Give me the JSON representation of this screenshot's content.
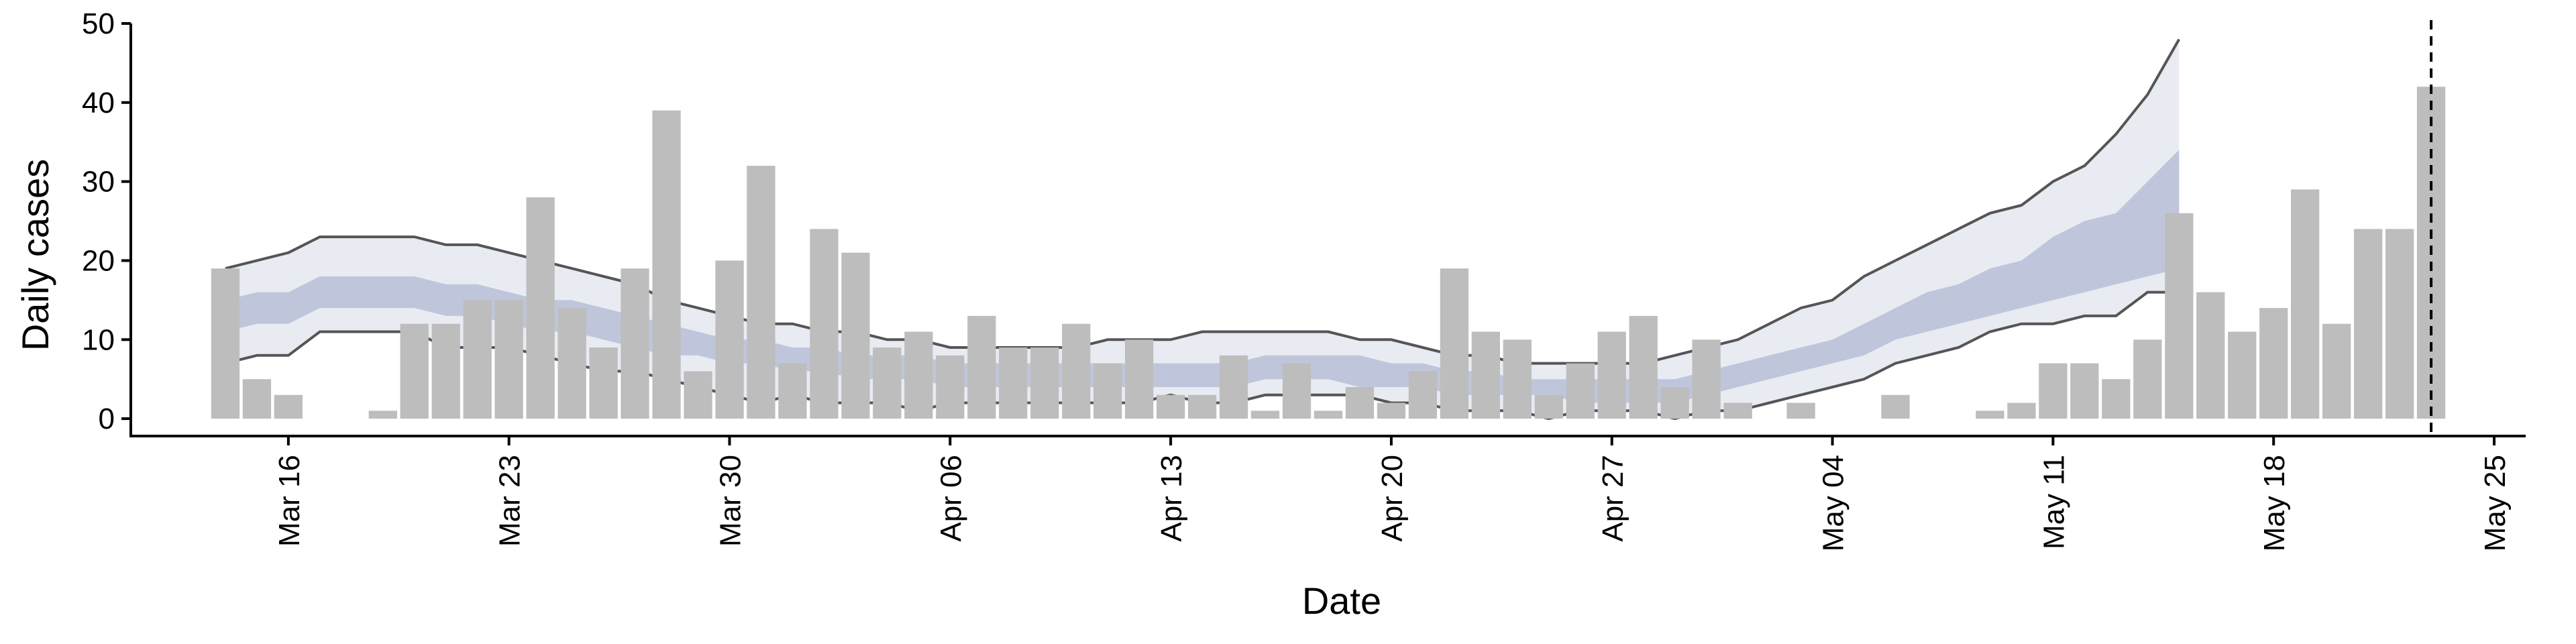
{
  "chart_data": {
    "type": "bar",
    "xlabel": "Date",
    "ylabel": "Daily cases",
    "ylim": [
      0,
      50
    ],
    "yticks": [
      0,
      10,
      20,
      30,
      40,
      50
    ],
    "xlim": [
      "2020-03-11",
      "2020-05-26"
    ],
    "xticks": [
      {
        "date": "2020-03-16",
        "label": "Mar 16"
      },
      {
        "date": "2020-03-23",
        "label": "Mar 23"
      },
      {
        "date": "2020-03-30",
        "label": "Mar 30"
      },
      {
        "date": "2020-04-06",
        "label": "Apr 06"
      },
      {
        "date": "2020-04-13",
        "label": "Apr 13"
      },
      {
        "date": "2020-04-20",
        "label": "Apr 20"
      },
      {
        "date": "2020-04-27",
        "label": "Apr 27"
      },
      {
        "date": "2020-05-04",
        "label": "May 04"
      },
      {
        "date": "2020-05-11",
        "label": "May 11"
      },
      {
        "date": "2020-05-18",
        "label": "May 18"
      },
      {
        "date": "2020-05-25",
        "label": "May 25"
      }
    ],
    "bar_color": "#bdbdbd",
    "bars_start_date": "2020-03-14",
    "bar_values": [
      19,
      5,
      3,
      0,
      0,
      1,
      12,
      12,
      15,
      15,
      28,
      14,
      9,
      19,
      39,
      6,
      20,
      32,
      7,
      24,
      21,
      9,
      11,
      8,
      13,
      9,
      9,
      12,
      7,
      10,
      3,
      3,
      8,
      1,
      7,
      1,
      4,
      2,
      6,
      19,
      11,
      10,
      3,
      7,
      11,
      13,
      4,
      10,
      2,
      0,
      2,
      0,
      0,
      3,
      0,
      0,
      1,
      2,
      7,
      7,
      5,
      10,
      26,
      16,
      11,
      14,
      29,
      12,
      24,
      24,
      42
    ],
    "band_start_date": "2020-03-14",
    "band_outer_color": "#e9ebf3",
    "band_inner_color": "#b7c0d6",
    "band_outer_upper": [
      19,
      20,
      21,
      23,
      23,
      23,
      23,
      22,
      22,
      21,
      20,
      19,
      18,
      17,
      15,
      14,
      13,
      12,
      12,
      11,
      11,
      10,
      10,
      9,
      9,
      9,
      9,
      9,
      10,
      10,
      10,
      11,
      11,
      11,
      11,
      11,
      10,
      10,
      9,
      8,
      8,
      7,
      7,
      7,
      7,
      7,
      8,
      9,
      10,
      12,
      14,
      15,
      18,
      20,
      22,
      24,
      26,
      27,
      30,
      32,
      36,
      41,
      48
    ],
    "band_outer_lower": [
      7,
      8,
      8,
      11,
      11,
      11,
      11,
      9,
      9,
      9,
      8,
      7,
      6,
      6,
      5,
      4,
      3,
      2,
      3,
      2,
      2,
      2,
      1,
      2,
      2,
      2,
      2,
      2,
      2,
      2,
      3,
      2,
      2,
      3,
      3,
      3,
      3,
      2,
      2,
      1,
      1,
      1,
      0,
      1,
      1,
      1,
      0,
      1,
      1,
      2,
      3,
      4,
      5,
      7,
      8,
      9,
      11,
      12,
      12,
      13,
      13,
      16,
      16
    ],
    "band_inner_upper": [
      15,
      16,
      16,
      18,
      18,
      18,
      18,
      17,
      17,
      16,
      15,
      15,
      14,
      13,
      12,
      11,
      10,
      10,
      9,
      9,
      8,
      8,
      8,
      7,
      7,
      7,
      7,
      7,
      7,
      7,
      7,
      7,
      7,
      8,
      8,
      8,
      8,
      7,
      7,
      6,
      6,
      5,
      5,
      5,
      5,
      5,
      5,
      6,
      7,
      8,
      9,
      10,
      12,
      14,
      16,
      17,
      19,
      20,
      23,
      25,
      26,
      30,
      34
    ],
    "band_inner_lower": [
      11,
      12,
      12,
      14,
      14,
      14,
      14,
      13,
      13,
      12,
      11,
      11,
      10,
      9,
      8,
      8,
      7,
      7,
      6,
      6,
      5,
      5,
      5,
      4,
      4,
      4,
      4,
      4,
      4,
      4,
      4,
      4,
      4,
      5,
      5,
      5,
      4,
      4,
      4,
      3,
      3,
      3,
      3,
      2,
      2,
      2,
      2,
      3,
      4,
      5,
      6,
      7,
      8,
      10,
      11,
      12,
      13,
      14,
      15,
      16,
      17,
      18,
      19
    ],
    "line_color": "#555555",
    "vline_date": "2020-05-23",
    "vline_style": "dashed",
    "grid": false,
    "legend": "none"
  }
}
